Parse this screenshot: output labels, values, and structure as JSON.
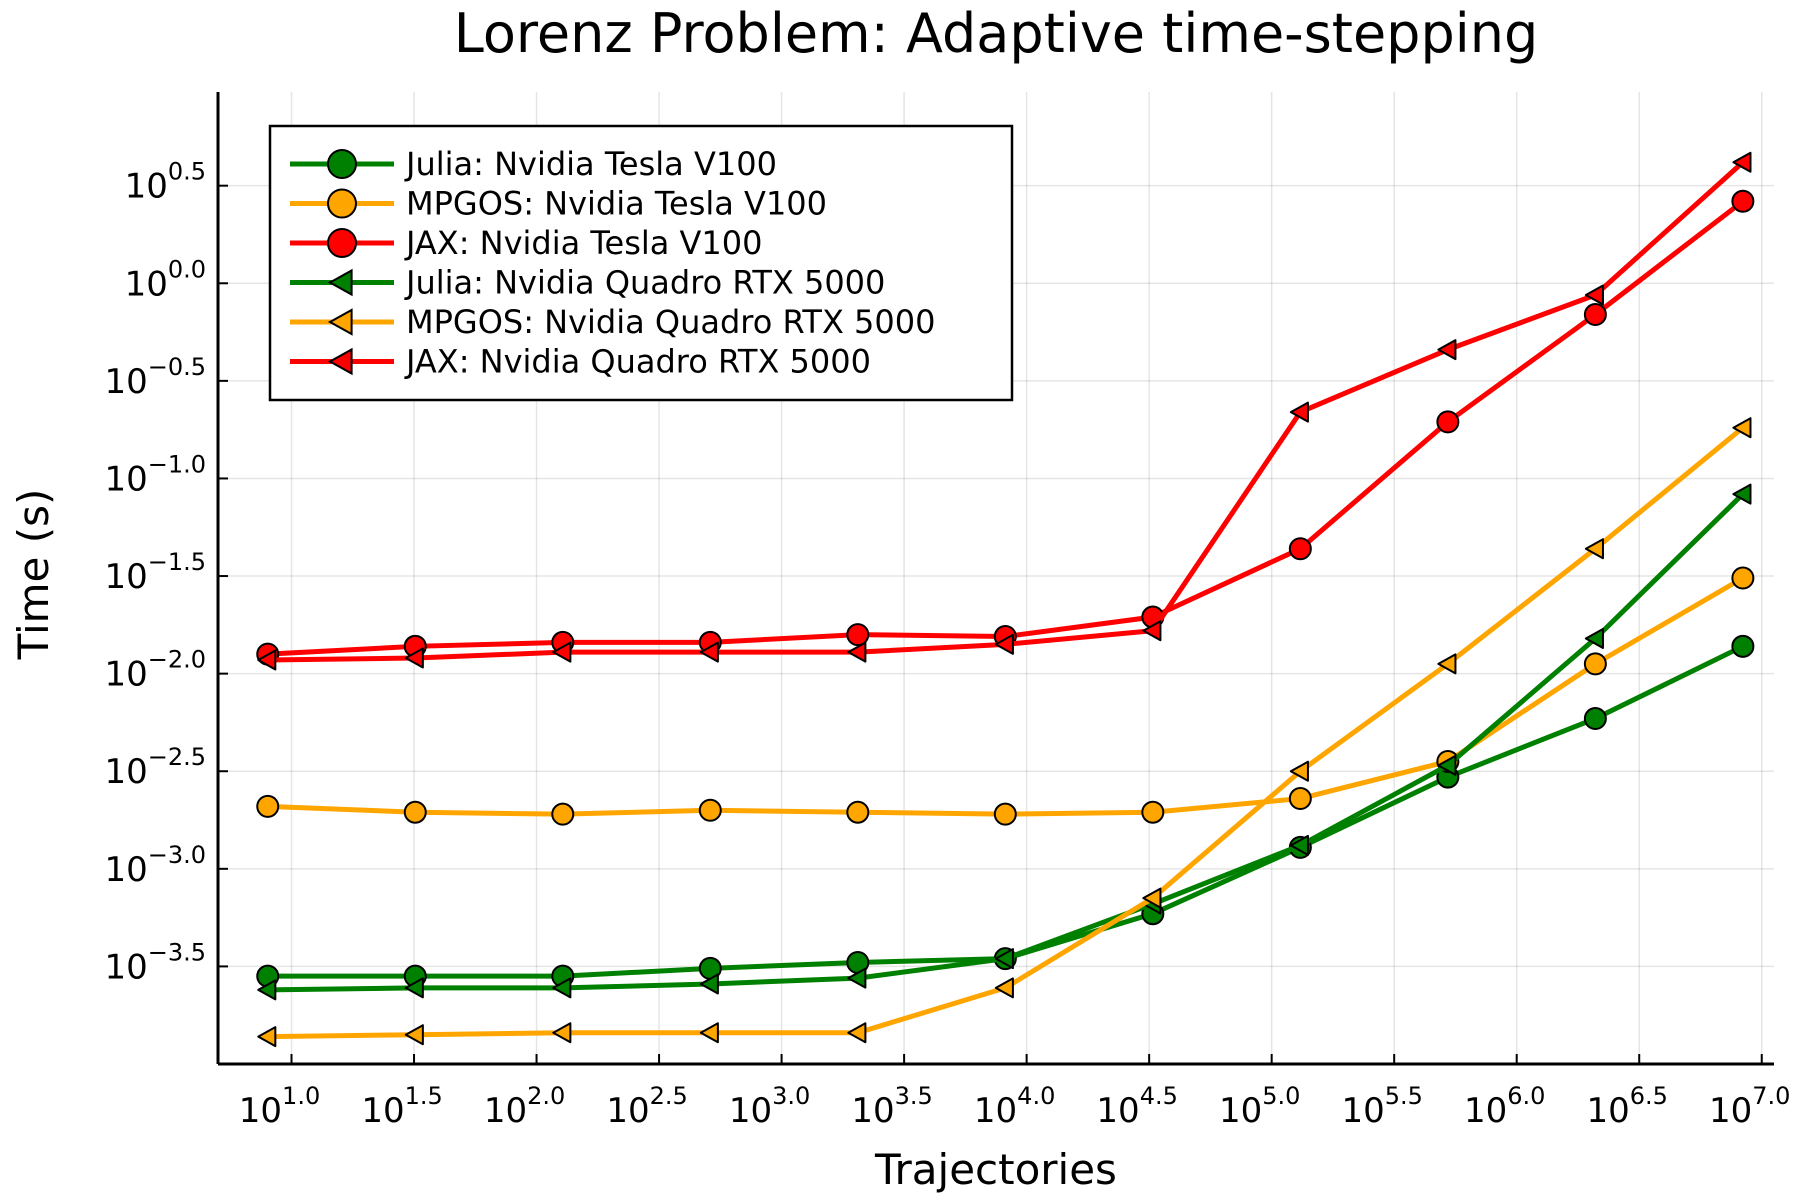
{
  "chart_data": {
    "type": "line",
    "title": "Lorenz Problem: Adaptive time-stepping",
    "xlabel": "Trajectories",
    "ylabel": "Time (s)",
    "x_scale": "log10",
    "y_scale": "log10",
    "xlim_log10": [
      0.7,
      7.05
    ],
    "ylim_log10": [
      -4.0,
      0.98
    ],
    "x_ticks": [
      "1.0",
      "1.5",
      "2.0",
      "2.5",
      "3.0",
      "3.5",
      "4.0",
      "4.5",
      "5.0",
      "5.5",
      "6.0",
      "6.5",
      "7.0"
    ],
    "y_ticks": [
      "0.5",
      "0.0",
      "−0.5",
      "−1.0",
      "−1.5",
      "−2.0",
      "−2.5",
      "−3.0",
      "−3.5"
    ],
    "tick_base": "10",
    "grid": true,
    "legend_position": "top-left",
    "x_log10": [
      0.903,
      1.505,
      2.107,
      2.709,
      3.311,
      3.913,
      4.515,
      5.117,
      5.719,
      6.321,
      6.923
    ],
    "series": [
      {
        "name": "Julia: Nvidia Tesla V100",
        "color": "#008000",
        "marker": "circle",
        "y_log10": [
          -3.55,
          -3.55,
          -3.55,
          -3.51,
          -3.48,
          -3.46,
          -3.23,
          -2.89,
          -2.53,
          -2.23,
          -1.86
        ]
      },
      {
        "name": "MPGOS: Nvidia Tesla V100",
        "color": "#FFA500",
        "marker": "circle",
        "y_log10": [
          -2.68,
          -2.71,
          -2.72,
          -2.7,
          -2.71,
          -2.72,
          -2.71,
          -2.64,
          -2.45,
          -1.95,
          -1.51
        ]
      },
      {
        "name": "JAX: Nvidia Tesla V100",
        "color": "#FF0000",
        "marker": "circle",
        "y_log10": [
          -1.9,
          -1.86,
          -1.84,
          -1.84,
          -1.8,
          -1.81,
          -1.71,
          -1.36,
          -0.71,
          -0.16,
          0.42
        ]
      },
      {
        "name": "Julia: Nvidia Quadro RTX 5000",
        "color": "#008000",
        "marker": "triangle-left",
        "y_log10": [
          -3.62,
          -3.61,
          -3.61,
          -3.59,
          -3.56,
          -3.46,
          -3.18,
          -2.88,
          -2.47,
          -1.82,
          -1.08
        ]
      },
      {
        "name": "MPGOS: Nvidia Quadro RTX 5000",
        "color": "#FFA500",
        "marker": "triangle-left",
        "y_log10": [
          -3.86,
          -3.85,
          -3.84,
          -3.84,
          -3.84,
          -3.61,
          -3.15,
          -2.5,
          -1.95,
          -1.36,
          -0.74
        ]
      },
      {
        "name": "JAX: Nvidia Quadro RTX 5000",
        "color": "#FF0000",
        "marker": "triangle-left",
        "y_log10": [
          -1.93,
          -1.92,
          -1.89,
          -1.89,
          -1.89,
          -1.85,
          -1.78,
          -0.66,
          -0.34,
          -0.06,
          0.62
        ]
      }
    ]
  }
}
